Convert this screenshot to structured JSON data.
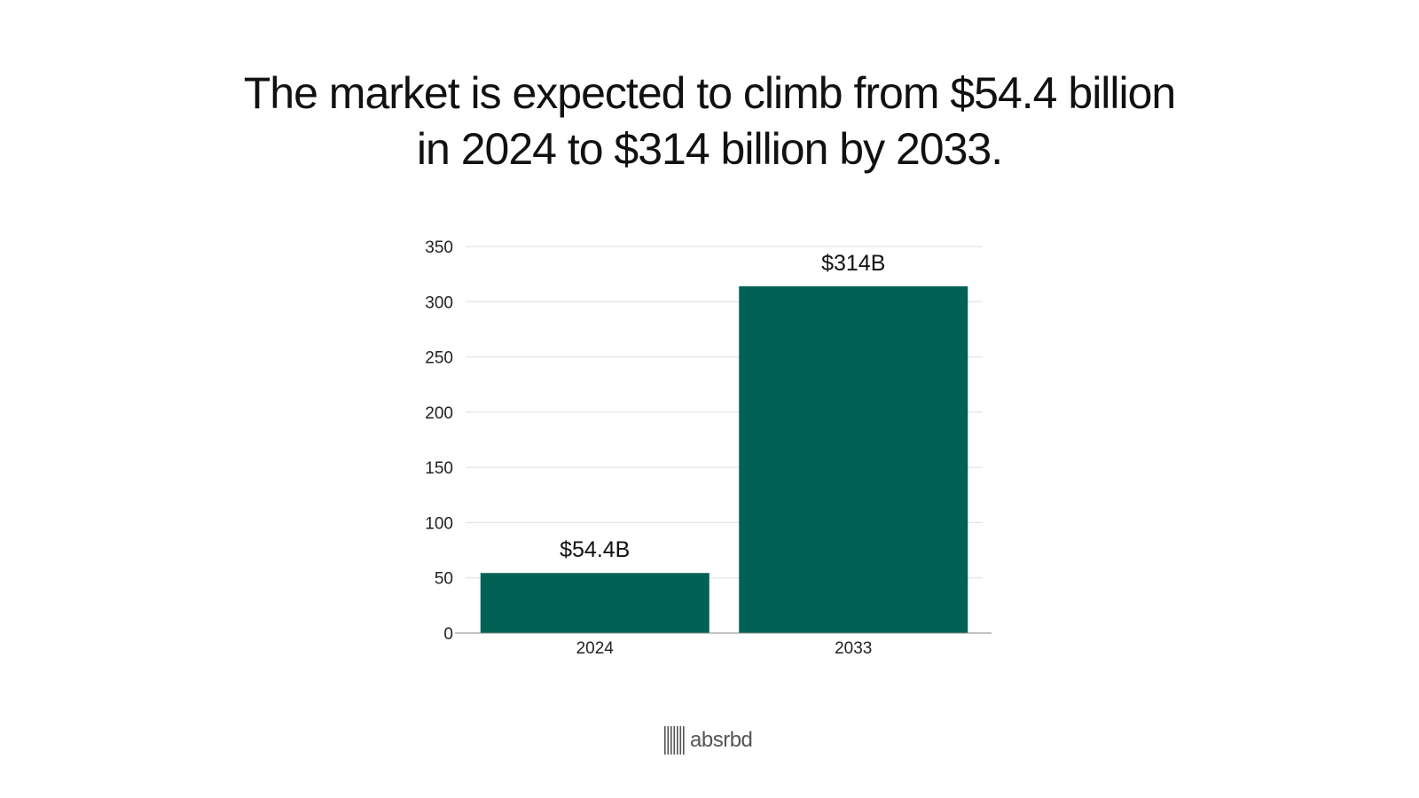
{
  "title": {
    "line1": "The market is expected to climb from $54.4 billion",
    "line2": "in 2024 to $314 billion by 2033."
  },
  "chart_data": {
    "type": "bar",
    "categories": [
      "2024",
      "2033"
    ],
    "values": [
      54.4,
      314
    ],
    "data_labels": [
      "$54.4B",
      "$314B"
    ],
    "ylim": [
      0,
      350
    ],
    "yticks": [
      0,
      50,
      100,
      150,
      200,
      250,
      300,
      350
    ],
    "grid": true,
    "bar_color": "#006155",
    "gridline_color": "#dddddd"
  },
  "branding": {
    "logo_text": "absrbd",
    "logo_icon": "barcode-icon"
  }
}
